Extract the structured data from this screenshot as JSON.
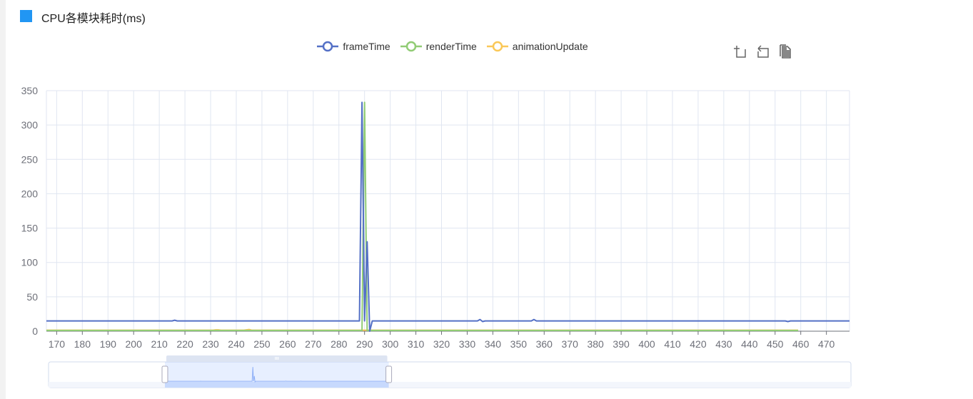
{
  "title": "CPU各模块耗时(ms)",
  "colors": {
    "title_square": "#2196f3",
    "grid": "#e0e6f1",
    "axis_text": "#6e7079"
  },
  "toolbox": [
    {
      "name": "zoom-icon",
      "label": "区域缩放"
    },
    {
      "name": "zoom-back-icon",
      "label": "区域缩放还原"
    },
    {
      "name": "data-view-icon",
      "label": "数据视图"
    }
  ],
  "chart_data": {
    "type": "line",
    "title": "CPU各模块耗时(ms)",
    "xlabel": "",
    "ylabel": "",
    "x_start": 166,
    "x_end": 479,
    "xlim": [
      166,
      479
    ],
    "ylim": [
      0,
      350
    ],
    "x_ticks": [
      170,
      180,
      190,
      200,
      210,
      220,
      230,
      240,
      250,
      260,
      270,
      280,
      290,
      300,
      310,
      320,
      330,
      340,
      350,
      360,
      370,
      380,
      390,
      400,
      410,
      420,
      430,
      440,
      450,
      460,
      470
    ],
    "y_ticks": [
      0,
      50,
      100,
      150,
      200,
      250,
      300,
      350
    ],
    "grid": true,
    "legend_position": "top",
    "datazoom": {
      "start_percent": 14.5,
      "end_percent": 42.4
    },
    "series": [
      {
        "name": "frameTime",
        "color": "#5470c6",
        "values": [
          15,
          15,
          15,
          15,
          15,
          15,
          15,
          15,
          15,
          15,
          15,
          15,
          15,
          15,
          15,
          15,
          15,
          15,
          15,
          15,
          15,
          15,
          15,
          15,
          15,
          15,
          15,
          15,
          15,
          15,
          15,
          15,
          15,
          15,
          15,
          15,
          15,
          15,
          15,
          15,
          15,
          15,
          15,
          15,
          15,
          15,
          15,
          15,
          15,
          15,
          16,
          15,
          15,
          15,
          15,
          15,
          15,
          15,
          15,
          15,
          15,
          15,
          15,
          15,
          15,
          15,
          15,
          15,
          15,
          15,
          15,
          15,
          15,
          15,
          15,
          15,
          15,
          15,
          15,
          15,
          15,
          15,
          15,
          15,
          15,
          15,
          15,
          15,
          15,
          15,
          15,
          15,
          15,
          15,
          15,
          15,
          15,
          15,
          15,
          15,
          15,
          15,
          15,
          15,
          15,
          15,
          15,
          15,
          15,
          15,
          15,
          15,
          15,
          15,
          15,
          15,
          15,
          15,
          15,
          15,
          15,
          15,
          15,
          333,
          15,
          130,
          0,
          15,
          15,
          15,
          15,
          15,
          15,
          15,
          15,
          15,
          15,
          15,
          15,
          15,
          15,
          15,
          15,
          15,
          15,
          15,
          15,
          15,
          15,
          15,
          15,
          15,
          15,
          15,
          15,
          15,
          15,
          15,
          15,
          15,
          15,
          15,
          15,
          15,
          15,
          15,
          15,
          15,
          15,
          17,
          14,
          15,
          15,
          15,
          15,
          15,
          15,
          15,
          15,
          15,
          15,
          15,
          15,
          15,
          15,
          15,
          15,
          15,
          15,
          15,
          17,
          15,
          15,
          15,
          15,
          15,
          15,
          15,
          15,
          15,
          15,
          15,
          15,
          15,
          15,
          15,
          15,
          15,
          15,
          15,
          15,
          15,
          15,
          15,
          15,
          15,
          15,
          15,
          15,
          15,
          15,
          15,
          15,
          15,
          15,
          15,
          15,
          15,
          15,
          15,
          15,
          15,
          15,
          15,
          15,
          15,
          15,
          15,
          15,
          15,
          15,
          15,
          15,
          15,
          15,
          15,
          15,
          15,
          15,
          15,
          15,
          15,
          15,
          15,
          15,
          15,
          15,
          15,
          15,
          15,
          15,
          15,
          15,
          15,
          15,
          15,
          15,
          15,
          15,
          15,
          15,
          15,
          15,
          15,
          15,
          15,
          15,
          15,
          15,
          15,
          15,
          15,
          15,
          15,
          15,
          15,
          15,
          15,
          15,
          14,
          15,
          15,
          15,
          15,
          15,
          15,
          15,
          15,
          15,
          15,
          15,
          15,
          15,
          15,
          15,
          15,
          15,
          15,
          15,
          15,
          15,
          15,
          15,
          15
        ]
      },
      {
        "name": "renderTime",
        "color": "#91cc75",
        "values": [
          1,
          1,
          1,
          1,
          1,
          1,
          1,
          1,
          1,
          1,
          1,
          1,
          1,
          1,
          1,
          1,
          1,
          1,
          1,
          1,
          1,
          1,
          1,
          1,
          1,
          1,
          1,
          1,
          1,
          1,
          1,
          1,
          1,
          1,
          1,
          1,
          1,
          1,
          1,
          1,
          1,
          1,
          1,
          1,
          1,
          1,
          1,
          1,
          1,
          1,
          1,
          1,
          1,
          1,
          1,
          1,
          1,
          1,
          1,
          1,
          1,
          1,
          1,
          1,
          1,
          1,
          1,
          1,
          1,
          1,
          1,
          1,
          1,
          1,
          1,
          1,
          1,
          1,
          1,
          1,
          1,
          1,
          1,
          1,
          1,
          1,
          1,
          1,
          1,
          1,
          1,
          1,
          1,
          1,
          1,
          1,
          1,
          1,
          1,
          1,
          1,
          1,
          1,
          1,
          1,
          1,
          1,
          1,
          1,
          1,
          1,
          1,
          1,
          1,
          1,
          1,
          1,
          1,
          1,
          1,
          1,
          1,
          1,
          1,
          333,
          1,
          1,
          1,
          1,
          1,
          1,
          1,
          1,
          1,
          1,
          1,
          1,
          1,
          1,
          1,
          1,
          1,
          1,
          1,
          1,
          1,
          1,
          1,
          1,
          1,
          1,
          1,
          1,
          1,
          1,
          1,
          1,
          1,
          1,
          1,
          1,
          1,
          1,
          1,
          1,
          1,
          1,
          1,
          1,
          1,
          1,
          1,
          1,
          1,
          1,
          1,
          1,
          1,
          1,
          1,
          1,
          1,
          1,
          1,
          1,
          1,
          1,
          1,
          1,
          1,
          1,
          1,
          1,
          1,
          1,
          1,
          1,
          1,
          1,
          1,
          1,
          1,
          1,
          1,
          1,
          1,
          1,
          1,
          1,
          1,
          1,
          1,
          1,
          1,
          1,
          1,
          1,
          1,
          1,
          1,
          1,
          1,
          1,
          1,
          1,
          1,
          1,
          1,
          1,
          1,
          1,
          1,
          1,
          1,
          1,
          1,
          1,
          1,
          1,
          1,
          1,
          1,
          1,
          1,
          1,
          1,
          1,
          1,
          1,
          1,
          1,
          1,
          1,
          1,
          1,
          1,
          1,
          1,
          1,
          1,
          1,
          1,
          1,
          1,
          1,
          1,
          1,
          1,
          1,
          1,
          1,
          1,
          1,
          1,
          1,
          1,
          1,
          1,
          1,
          1,
          1,
          1,
          1,
          1,
          1,
          1,
          1,
          1,
          1,
          1,
          1,
          1,
          1,
          1
        ]
      },
      {
        "name": "animationUpdate",
        "color": "#fac858",
        "values": [
          1.5,
          1.5,
          1.5,
          1.5,
          1.5,
          1.5,
          1.5,
          1.5,
          1.5,
          1.5,
          1.5,
          1.5,
          1.5,
          1.5,
          1.5,
          1.5,
          1.5,
          1.5,
          1.5,
          1.5,
          1.5,
          1.5,
          1.5,
          1.5,
          1.5,
          1.5,
          1.5,
          1.5,
          1.5,
          1.5,
          1.5,
          1.5,
          1.5,
          1.5,
          1.5,
          1.5,
          1.5,
          1.5,
          1.5,
          1.5,
          1.5,
          1.5,
          1.5,
          1.5,
          1.5,
          1.5,
          1.5,
          1.5,
          1.5,
          1.5,
          1.5,
          1.5,
          1.5,
          1.5,
          1.5,
          1.5,
          1.5,
          1.5,
          1.5,
          1.5,
          1.5,
          1.5,
          1.5,
          1.5,
          1.5,
          1.5,
          2,
          2,
          1.5,
          1.5,
          1.5,
          1.5,
          1.5,
          1.5,
          1.5,
          1.5,
          1.5,
          1.5,
          2,
          2.5,
          1.5,
          1.5,
          1.5,
          1.5,
          1.5,
          1.5,
          1.5,
          1.5,
          1.5,
          1.5,
          1.5,
          1.5,
          1.5,
          1.5,
          1.5,
          1.5,
          1.5,
          1.5,
          1.5,
          1.5,
          1.5,
          1.5,
          1.5,
          1.5,
          1.5,
          1.5,
          1.5,
          1.5,
          1.5,
          1.5,
          1.5,
          1.5,
          1.5,
          1.5,
          1.5,
          1.5,
          1.5,
          1.5,
          1.5,
          1.5,
          1.5,
          1.5,
          1.5,
          1.5,
          1.5,
          1.5,
          1.5,
          1.5,
          1.5,
          1.5,
          1.5,
          1.5,
          1.5,
          1.5,
          1.5,
          1.5,
          1.5,
          1.5,
          1.5,
          1.5,
          1.5,
          1.5,
          1.5,
          1.5,
          1.5,
          1.5,
          1.5,
          1.5,
          1.5,
          1.5,
          1.5,
          1.5,
          1.5,
          1.5,
          1.5,
          1.5,
          1.5,
          1.5,
          1.5,
          1.5,
          1.5,
          1.5,
          1.5,
          1.5,
          1.5,
          1.5,
          1.5,
          1.5,
          1.5,
          1.5,
          1.5,
          1.5,
          1.5,
          1.5,
          1.5,
          1.5,
          1.5,
          1.5,
          1.5,
          1.5,
          1.5,
          1.5,
          1.5,
          1.5,
          1.5,
          1.5,
          1.5,
          1.5,
          1.5,
          1.5,
          1.5,
          1.5,
          1.5,
          1.5,
          1.5,
          1.5,
          1.5,
          1.5,
          1.5,
          1.5,
          1.5,
          1.5,
          1.5,
          1.5,
          1.5,
          1.5,
          1.5,
          1.5,
          1.5,
          1.5,
          1.5,
          1.5,
          1.5,
          1.5,
          1.5,
          1.5,
          1.5,
          1.5,
          1.5,
          1.5,
          1.5,
          1.5,
          1.5,
          1.5,
          1.5,
          1.5,
          1.5,
          1.5,
          1.5,
          1.5,
          1.5,
          1.5,
          1.5,
          1.5,
          1.5,
          1.5,
          1.5,
          1.5,
          1.5,
          1.5,
          1.5,
          1.5,
          1.5,
          1.5,
          1.5,
          1.5,
          1.5,
          1.5,
          1.5,
          1.5,
          1.5,
          1.5,
          1.5,
          1.5,
          1.5,
          1.5,
          1.5,
          1.5,
          1.5,
          1.5,
          1.5,
          1.5,
          1.5,
          1.5,
          1.5,
          1.5,
          1.5,
          1.5,
          1.5,
          1.5,
          1.5,
          1.5,
          1.5,
          1.5,
          1.5,
          1.5,
          1.5,
          1.5,
          1.5,
          1.5,
          1.5,
          1.5,
          1.5,
          1.5,
          1.5,
          1.5,
          1.5,
          1.5,
          1.5,
          1.5,
          1.5,
          1.5,
          1.5,
          1.5
        ]
      }
    ]
  }
}
